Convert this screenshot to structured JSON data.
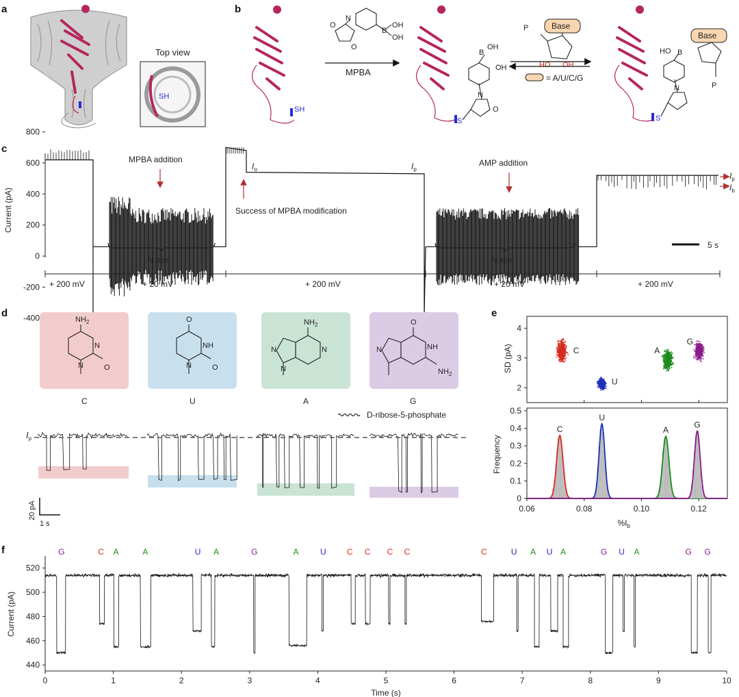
{
  "panels": {
    "a": "a",
    "b": "b",
    "c": "c",
    "d": "d",
    "e": "e",
    "f": "f"
  },
  "colors": {
    "C": "#d42b1e",
    "U": "#1f2fb8",
    "A": "#1a8a1a",
    "G": "#8a1a8a",
    "protein": "#b5265e",
    "gray": "#9a9a9a",
    "boxC": "#f2cccc",
    "boxU": "#c8e0ee",
    "boxA": "#c9e3d5",
    "boxG": "#dccbe5",
    "arrow": "#b03030"
  },
  "panel_a": {
    "top_view": "Top view",
    "sh": "SH",
    "icon": "nanopore-structure-icon"
  },
  "panel_b": {
    "reagent": "MPBA",
    "sh": "SH",
    "s": "S",
    "base": "Base",
    "legend": "= A/U/C/G",
    "atoms": {
      "oh": "OH",
      "ho": "HO",
      "b": "B",
      "n": "N",
      "o": "O",
      "p": "P",
      "minus": "-"
    }
  },
  "panel_c": {
    "ylabel": "Current (pA)",
    "yticks": [
      "800",
      "600",
      "400",
      "200",
      "0",
      "-200",
      "-400"
    ],
    "mpba_addition": "MPBA addition",
    "amp_addition": "AMP addition",
    "success": "Success of MPBA modification",
    "noise": "Noise",
    "io": "I",
    "io_sub": "o",
    "ip": "I",
    "ip_sub": "p",
    "ib": "I",
    "ib_sub": "b",
    "scale": "5 s",
    "voltages": [
      "+ 200 mV",
      "+ 20 mV",
      "+ 200 mV",
      "+ 20 mV",
      "+ 200 mV"
    ]
  },
  "panel_d": {
    "bases": [
      "C",
      "U",
      "A",
      "G"
    ],
    "nh2": "NH",
    "nh2_sub": "2",
    "nh": "NH",
    "n": "N",
    "o": "O",
    "ribose": "D-ribose-5-phosphate",
    "ip": "I",
    "ip_sub": "p",
    "scale_y": "20 pA",
    "scale_x": "1 s"
  },
  "chart_data": [
    {
      "type": "scatter",
      "panel": "e-top",
      "title": "",
      "xlabel": "",
      "ylabel": "SD (pA)",
      "xlim": [
        0.06,
        0.13
      ],
      "ylim": [
        1.5,
        4.4
      ],
      "yticks": [
        2,
        3,
        4
      ],
      "series": [
        {
          "name": "C",
          "center_x": 0.072,
          "center_y": 3.25
        },
        {
          "name": "U",
          "center_x": 0.086,
          "center_y": 2.15
        },
        {
          "name": "A",
          "center_x": 0.109,
          "center_y": 2.95
        },
        {
          "name": "G",
          "center_x": 0.12,
          "center_y": 3.25
        }
      ]
    },
    {
      "type": "area",
      "panel": "e-bottom",
      "title": "",
      "xlabel": "%I_b",
      "xlabel_main": "%I",
      "xlabel_sub": "b",
      "ylabel": "Frequency",
      "xlim": [
        0.06,
        0.13
      ],
      "ylim": [
        0,
        0.5
      ],
      "xticks": [
        0.06,
        0.08,
        0.1,
        0.12
      ],
      "xtick_labels": [
        "0.06",
        "0.08",
        "0.10",
        "0.12"
      ],
      "yticks": [
        0,
        0.1,
        0.2,
        0.3,
        0.4,
        0.5
      ],
      "ytick_labels": [
        "0",
        "0.1",
        "0.2",
        "0.3",
        "0.4",
        "0.5"
      ],
      "series": [
        {
          "name": "C",
          "mean": 0.0715,
          "sd": 0.0011,
          "peak": 0.36
        },
        {
          "name": "U",
          "mean": 0.0862,
          "sd": 0.001,
          "peak": 0.425
        },
        {
          "name": "A",
          "mean": 0.1085,
          "sd": 0.0011,
          "peak": 0.355
        },
        {
          "name": "G",
          "mean": 0.1195,
          "sd": 0.001,
          "peak": 0.385
        }
      ]
    },
    {
      "type": "line",
      "panel": "f",
      "title": "",
      "xlabel": "Time (s)",
      "ylabel": "Current (pA)",
      "xlim": [
        0,
        10
      ],
      "ylim": [
        435,
        530
      ],
      "xticks": [
        0,
        1,
        2,
        3,
        4,
        5,
        6,
        7,
        8,
        9,
        10
      ],
      "yticks": [
        440,
        460,
        480,
        500,
        520
      ],
      "baseline": 514,
      "events": [
        {
          "base": "G",
          "start": 0.17,
          "end": 0.3,
          "level": 450
        },
        {
          "base": "C",
          "start": 0.8,
          "end": 0.87,
          "level": 474
        },
        {
          "base": "A",
          "start": 1.01,
          "end": 1.08,
          "level": 455
        },
        {
          "base": "A",
          "start": 1.4,
          "end": 1.55,
          "level": 455
        },
        {
          "base": "U",
          "start": 2.17,
          "end": 2.29,
          "level": 468
        },
        {
          "base": "A",
          "start": 2.44,
          "end": 2.49,
          "level": 455
        },
        {
          "base": "G",
          "start": 3.06,
          "end": 3.08,
          "level": 450
        },
        {
          "base": "A",
          "start": 3.58,
          "end": 3.84,
          "level": 456
        },
        {
          "base": "U",
          "start": 4.06,
          "end": 4.08,
          "level": 468
        },
        {
          "base": "C",
          "start": 4.49,
          "end": 4.55,
          "level": 474
        },
        {
          "base": "C",
          "start": 4.7,
          "end": 4.77,
          "level": 474
        },
        {
          "base": "C",
          "start": 5.04,
          "end": 5.06,
          "level": 474
        },
        {
          "base": "C",
          "start": 5.28,
          "end": 5.3,
          "level": 474
        },
        {
          "base": "C",
          "start": 6.4,
          "end": 6.58,
          "level": 476
        },
        {
          "base": "U",
          "start": 6.92,
          "end": 6.94,
          "level": 468
        },
        {
          "base": "A",
          "start": 7.18,
          "end": 7.25,
          "level": 455
        },
        {
          "base": "U",
          "start": 7.42,
          "end": 7.52,
          "level": 468
        },
        {
          "base": "A",
          "start": 7.6,
          "end": 7.68,
          "level": 455
        },
        {
          "base": "G",
          "start": 8.22,
          "end": 8.33,
          "level": 450
        },
        {
          "base": "U",
          "start": 8.48,
          "end": 8.5,
          "level": 468
        },
        {
          "base": "A",
          "start": 8.64,
          "end": 8.66,
          "level": 455
        },
        {
          "base": "G",
          "start": 9.48,
          "end": 9.57,
          "level": 450
        },
        {
          "base": "G",
          "start": 9.73,
          "end": 9.77,
          "level": 450
        }
      ],
      "labels": [
        {
          "base": "G",
          "x": 0.24
        },
        {
          "base": "C",
          "x": 0.82
        },
        {
          "base": "A",
          "x": 1.04
        },
        {
          "base": "A",
          "x": 1.47
        },
        {
          "base": "U",
          "x": 2.24
        },
        {
          "base": "A",
          "x": 2.51
        },
        {
          "base": "G",
          "x": 3.07
        },
        {
          "base": "A",
          "x": 3.68
        },
        {
          "base": "U",
          "x": 4.08
        },
        {
          "base": "C",
          "x": 4.47
        },
        {
          "base": "C",
          "x": 4.73
        },
        {
          "base": "C",
          "x": 5.06
        },
        {
          "base": "C",
          "x": 5.31
        },
        {
          "base": "C",
          "x": 6.44
        },
        {
          "base": "U",
          "x": 6.88
        },
        {
          "base": "A",
          "x": 7.16
        },
        {
          "base": "U",
          "x": 7.4
        },
        {
          "base": "A",
          "x": 7.6
        },
        {
          "base": "G",
          "x": 8.2
        },
        {
          "base": "U",
          "x": 8.46
        },
        {
          "base": "A",
          "x": 8.68
        },
        {
          "base": "G",
          "x": 9.44
        },
        {
          "base": "G",
          "x": 9.72
        }
      ]
    }
  ]
}
